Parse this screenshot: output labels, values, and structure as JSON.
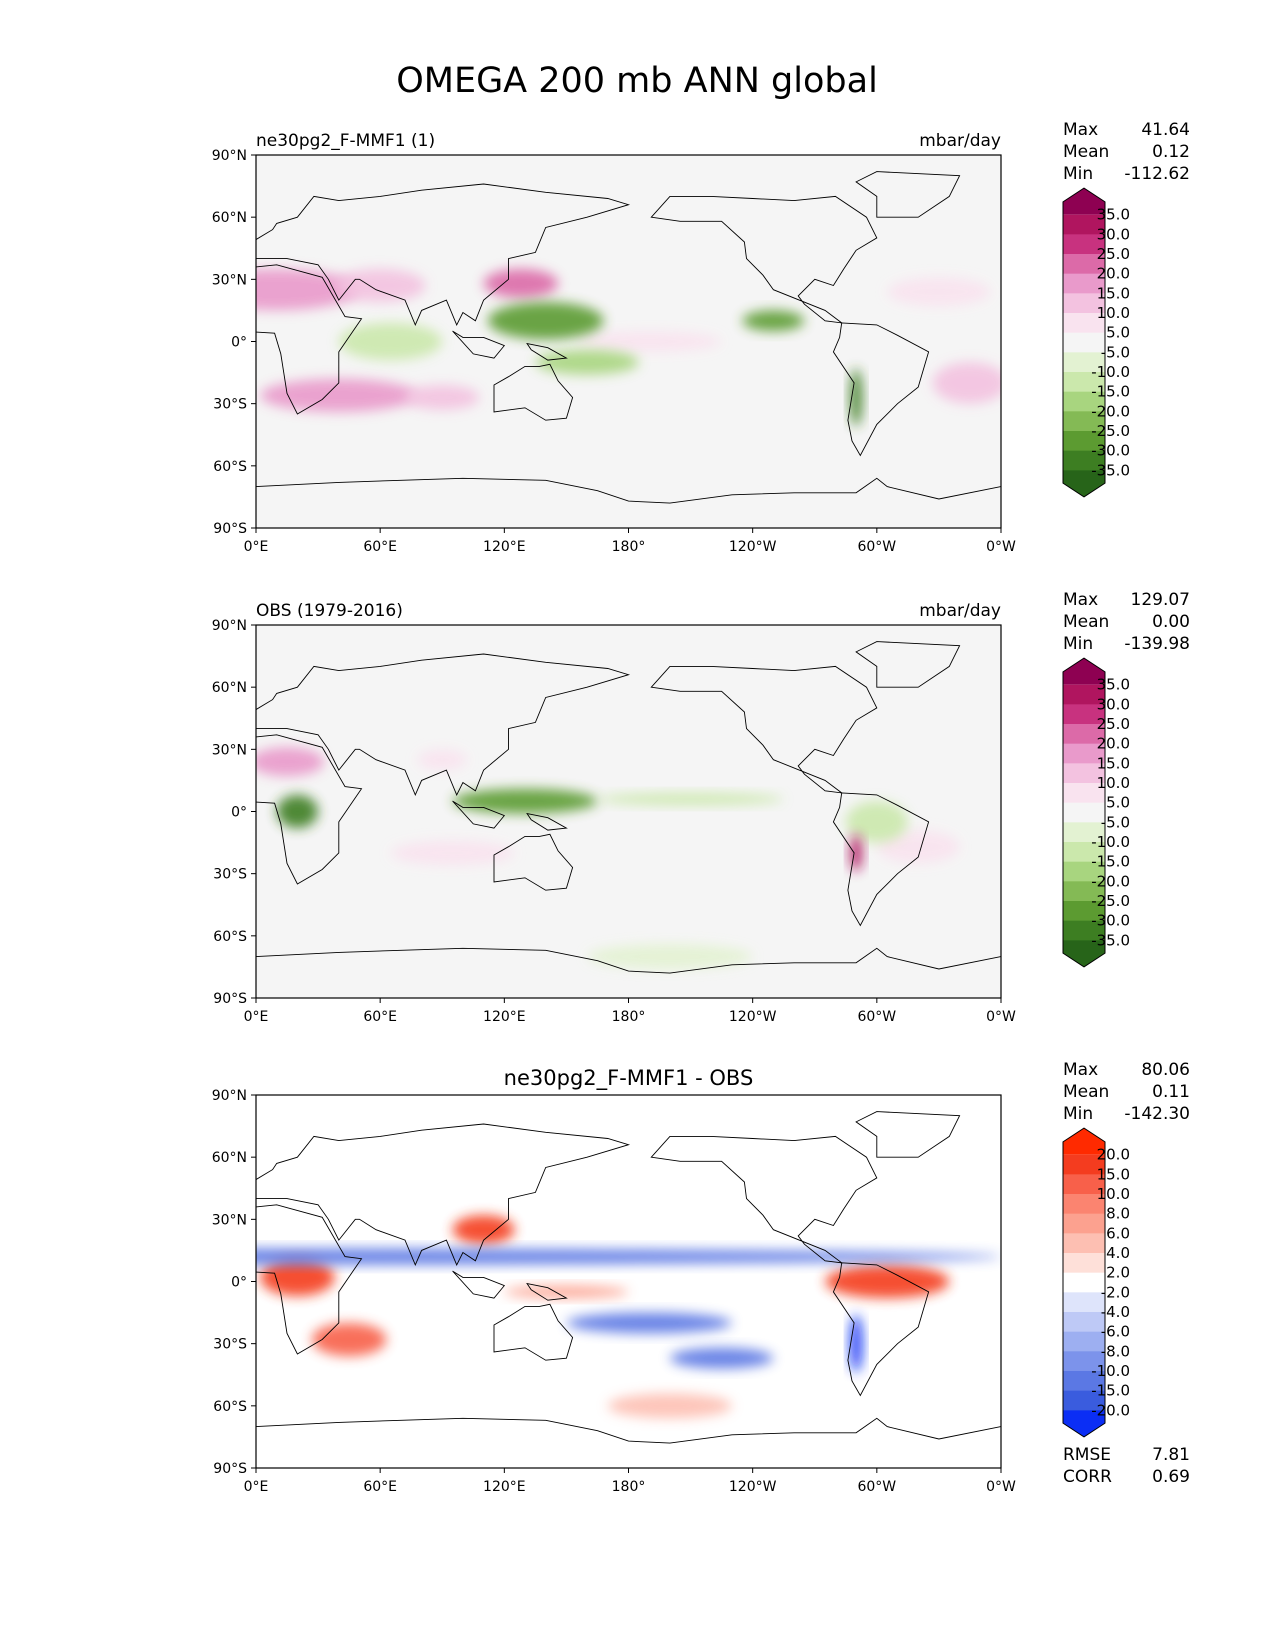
{
  "figure": {
    "title": "OMEGA 200 mb ANN global"
  },
  "axes": {
    "lat_ticks": [
      "90°N",
      "60°N",
      "30°N",
      "0°",
      "30°S",
      "60°S",
      "90°S"
    ],
    "lon_ticks": [
      "0°E",
      "60°E",
      "120°E",
      "180°",
      "120°W",
      "60°W",
      "0°W"
    ]
  },
  "panels": [
    {
      "left_title": "ne30pg2_F-MMF1 (1)",
      "center_title": "",
      "units": "mbar/day",
      "stats": [
        {
          "label": "Max",
          "value": "41.64"
        },
        {
          "label": "Mean",
          "value": "0.12"
        },
        {
          "label": "Min",
          "value": "-112.62"
        }
      ],
      "colorbar": {
        "labels": [
          "35.0",
          "30.0",
          "25.0",
          "20.0",
          "15.0",
          "10.0",
          "5.0",
          "-5.0",
          "-10.0",
          "-15.0",
          "-20.0",
          "-25.0",
          "-30.0",
          "-35.0"
        ],
        "colors": [
          "#8e0152",
          "#b0155f",
          "#c8327f",
          "#dc6aa8",
          "#e99acb",
          "#f3c2e0",
          "#f9e3ef",
          "#f5f5f5",
          "#e3f2d2",
          "#cbe8ac",
          "#a8d57f",
          "#84ba55",
          "#5c9b31",
          "#3d7e22",
          "#276419"
        ]
      }
    },
    {
      "left_title": "OBS (1979-2016)",
      "center_title": "",
      "units": "mbar/day",
      "stats": [
        {
          "label": "Max",
          "value": "129.07"
        },
        {
          "label": "Mean",
          "value": "0.00"
        },
        {
          "label": "Min",
          "value": "-139.98"
        }
      ],
      "colorbar": {
        "labels": [
          "35.0",
          "30.0",
          "25.0",
          "20.0",
          "15.0",
          "10.0",
          "5.0",
          "-5.0",
          "-10.0",
          "-15.0",
          "-20.0",
          "-25.0",
          "-30.0",
          "-35.0"
        ],
        "colors": [
          "#8e0152",
          "#b0155f",
          "#c8327f",
          "#dc6aa8",
          "#e99acb",
          "#f3c2e0",
          "#f9e3ef",
          "#f5f5f5",
          "#e3f2d2",
          "#cbe8ac",
          "#a8d57f",
          "#84ba55",
          "#5c9b31",
          "#3d7e22",
          "#276419"
        ]
      }
    },
    {
      "left_title": "",
      "center_title": "ne30pg2_F-MMF1 - OBS",
      "units": "",
      "stats": [
        {
          "label": "Max",
          "value": "80.06"
        },
        {
          "label": "Mean",
          "value": "0.11"
        },
        {
          "label": "Min",
          "value": "-142.30"
        }
      ],
      "extra_stats": [
        {
          "label": "RMSE",
          "value": "7.81"
        },
        {
          "label": "CORR",
          "value": "0.69"
        }
      ],
      "colorbar": {
        "labels": [
          "20.0",
          "15.0",
          "10.0",
          "8.0",
          "6.0",
          "4.0",
          "2.0",
          "-2.0",
          "-4.0",
          "-6.0",
          "-8.0",
          "-10.0",
          "-15.0",
          "-20.0"
        ],
        "colors": [
          "#ff2a00",
          "#f43c1f",
          "#f8604a",
          "#fb8470",
          "#fca18f",
          "#fdbfb2",
          "#fee0d9",
          "#ffffff",
          "#dee4fb",
          "#bec9f6",
          "#9daff1",
          "#7c93eb",
          "#5b78e4",
          "#3a5cde",
          "#0b2ef5"
        ]
      }
    }
  ],
  "chart_data": [
    {
      "type": "heatmap",
      "title": "ne30pg2_F-MMF1 (1)",
      "units": "mbar/day",
      "x_ticks": [
        "0°E",
        "60°E",
        "120°E",
        "180°",
        "120°W",
        "60°W",
        "0°W"
      ],
      "y_ticks": [
        "90°N",
        "60°N",
        "30°N",
        "0°",
        "30°S",
        "60°S",
        "90°S"
      ],
      "xlim": [
        0,
        360
      ],
      "ylim": [
        -90,
        90
      ],
      "stats": {
        "max": 41.64,
        "mean": 0.12,
        "min": -112.62
      },
      "levels": [
        -35,
        -30,
        -25,
        -20,
        -15,
        -10,
        -5,
        5,
        10,
        15,
        20,
        25,
        30,
        35
      ],
      "features": [
        {
          "lon": 10,
          "lat": 25,
          "rlon": 40,
          "rlat": 10,
          "value": 20
        },
        {
          "lon": 60,
          "lat": 27,
          "rlon": 22,
          "rlat": 8,
          "value": 15
        },
        {
          "lon": 128,
          "lat": 28,
          "rlon": 18,
          "rlat": 7,
          "value": 25
        },
        {
          "lon": 40,
          "lat": -26,
          "rlon": 38,
          "rlat": 8,
          "value": 18
        },
        {
          "lon": 90,
          "lat": -27,
          "rlon": 18,
          "rlat": 6,
          "value": 12
        },
        {
          "lon": 190,
          "lat": 0,
          "rlon": 35,
          "rlat": 5,
          "value": 8
        },
        {
          "lon": 330,
          "lat": 24,
          "rlon": 25,
          "rlat": 7,
          "value": 10
        },
        {
          "lon": 345,
          "lat": -20,
          "rlon": 18,
          "rlat": 10,
          "value": 12
        },
        {
          "lon": 65,
          "lat": 0,
          "rlon": 25,
          "rlat": 9,
          "value": -12
        },
        {
          "lon": 140,
          "lat": 10,
          "rlon": 28,
          "rlat": 9,
          "value": -28
        },
        {
          "lon": 160,
          "lat": -10,
          "rlon": 25,
          "rlat": 6,
          "value": -18
        },
        {
          "lon": 250,
          "lat": 10,
          "rlon": 15,
          "rlat": 5,
          "value": -25
        },
        {
          "lon": 290,
          "lat": -27,
          "rlon": 3,
          "rlat": 14,
          "value": -30
        }
      ]
    },
    {
      "type": "heatmap",
      "title": "OBS (1979-2016)",
      "units": "mbar/day",
      "x_ticks": [
        "0°E",
        "60°E",
        "120°E",
        "180°",
        "120°W",
        "60°W",
        "0°W"
      ],
      "y_ticks": [
        "90°N",
        "60°N",
        "30°N",
        "0°",
        "30°S",
        "60°S",
        "90°S"
      ],
      "xlim": [
        0,
        360
      ],
      "ylim": [
        -90,
        90
      ],
      "stats": {
        "max": 129.07,
        "mean": 0.0,
        "min": -139.98
      },
      "levels": [
        -35,
        -30,
        -25,
        -20,
        -15,
        -10,
        -5,
        5,
        10,
        15,
        20,
        25,
        30,
        35
      ],
      "features": [
        {
          "lon": 15,
          "lat": 24,
          "rlon": 18,
          "rlat": 7,
          "value": 20
        },
        {
          "lon": 90,
          "lat": 25,
          "rlon": 12,
          "rlat": 5,
          "value": 10
        },
        {
          "lon": 95,
          "lat": -20,
          "rlon": 30,
          "rlat": 6,
          "value": 10
        },
        {
          "lon": 320,
          "lat": -17,
          "rlon": 20,
          "rlat": 8,
          "value": 10
        },
        {
          "lon": 20,
          "lat": 0,
          "rlon": 10,
          "rlat": 8,
          "value": -30
        },
        {
          "lon": 130,
          "lat": 5,
          "rlon": 35,
          "rlat": 6,
          "value": -28
        },
        {
          "lon": 210,
          "lat": 6,
          "rlon": 45,
          "rlat": 3,
          "value": -12
        },
        {
          "lon": 300,
          "lat": -5,
          "rlon": 15,
          "rlat": 10,
          "value": -12
        },
        {
          "lon": 290,
          "lat": -20,
          "rlon": 3,
          "rlat": 9,
          "value": 35
        },
        {
          "lon": 200,
          "lat": -70,
          "rlon": 40,
          "rlat": 6,
          "value": -6
        }
      ]
    },
    {
      "type": "heatmap",
      "title": "ne30pg2_F-MMF1 - OBS",
      "units": "",
      "x_ticks": [
        "0°E",
        "60°E",
        "120°E",
        "180°",
        "120°W",
        "60°W",
        "0°W"
      ],
      "y_ticks": [
        "90°N",
        "60°N",
        "30°N",
        "0°",
        "30°S",
        "60°S",
        "90°S"
      ],
      "xlim": [
        0,
        360
      ],
      "ylim": [
        -90,
        90
      ],
      "stats": {
        "max": 80.06,
        "mean": 0.11,
        "min": -142.3,
        "rmse": 7.81,
        "corr": 0.69
      },
      "levels": [
        -20,
        -15,
        -10,
        -8,
        -6,
        -4,
        -2,
        2,
        4,
        6,
        8,
        10,
        15,
        20
      ],
      "features": [
        {
          "lon": 20,
          "lat": 2,
          "rlon": 18,
          "rlat": 9,
          "value": 20
        },
        {
          "lon": 45,
          "lat": -28,
          "rlon": 18,
          "rlat": 8,
          "value": 12
        },
        {
          "lon": 110,
          "lat": 25,
          "rlon": 15,
          "rlat": 7,
          "value": 18
        },
        {
          "lon": 305,
          "lat": 0,
          "rlon": 30,
          "rlat": 8,
          "value": 16
        },
        {
          "lon": 150,
          "lat": -5,
          "rlon": 30,
          "rlat": 3,
          "value": 8
        },
        {
          "lon": 0,
          "lat": 12,
          "rlon": 360,
          "rlat": 4,
          "value": -14
        },
        {
          "lon": 190,
          "lat": -20,
          "rlon": 40,
          "rlat": 5,
          "value": -12
        },
        {
          "lon": 225,
          "lat": -37,
          "rlon": 25,
          "rlat": 5,
          "value": -10
        },
        {
          "lon": 290,
          "lat": -30,
          "rlon": 3,
          "rlat": 14,
          "value": -20
        },
        {
          "lon": 200,
          "lat": -60,
          "rlon": 30,
          "rlat": 6,
          "value": 5
        }
      ]
    }
  ]
}
